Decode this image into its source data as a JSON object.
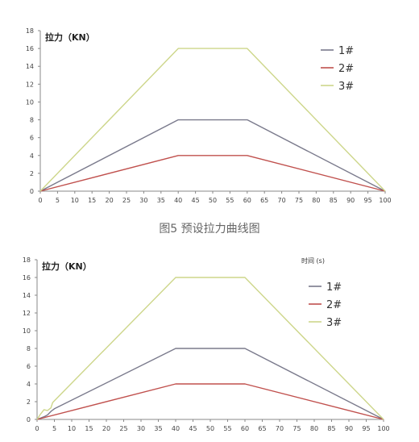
{
  "caption": "图5 预设拉力曲线图",
  "chart_data": [
    {
      "type": "line",
      "ylabel": "拉力（KN）",
      "xlim": [
        0,
        100
      ],
      "ylim": [
        0,
        18
      ],
      "x_ticks": [
        0,
        5,
        10,
        15,
        20,
        25,
        30,
        35,
        40,
        45,
        50,
        55,
        60,
        65,
        70,
        75,
        80,
        85,
        90,
        95,
        100
      ],
      "y_ticks": [
        0,
        2,
        4,
        6,
        8,
        10,
        12,
        14,
        16,
        18
      ],
      "legend_position": "top-right",
      "grid": false,
      "series": [
        {
          "name": "1#",
          "color": "#7a7a8c",
          "x": [
            0,
            40,
            60,
            100
          ],
          "y": [
            0,
            8,
            8,
            0
          ]
        },
        {
          "name": "2#",
          "color": "#c0504d",
          "x": [
            0,
            40,
            60,
            100
          ],
          "y": [
            0,
            4,
            4,
            0
          ]
        },
        {
          "name": "3#",
          "color": "#cdd68a",
          "x": [
            0,
            40,
            60,
            100
          ],
          "y": [
            0,
            16,
            16,
            0
          ]
        }
      ]
    },
    {
      "type": "line",
      "ylabel": "拉力（KN）",
      "xlabel": "时间 (s)",
      "xlim": [
        0,
        100
      ],
      "ylim": [
        0,
        18
      ],
      "x_ticks": [
        0,
        5,
        10,
        15,
        20,
        25,
        30,
        35,
        40,
        45,
        50,
        55,
        60,
        65,
        70,
        75,
        80,
        85,
        90,
        95,
        100
      ],
      "y_ticks": [
        0,
        2,
        4,
        6,
        8,
        10,
        12,
        14,
        16,
        18
      ],
      "legend_position": "top-right",
      "grid": false,
      "series": [
        {
          "name": "1#",
          "color": "#7a7a8c",
          "x": [
            0,
            2,
            3,
            4,
            5,
            40,
            60,
            100
          ],
          "y": [
            0,
            0.3,
            0.5,
            0.9,
            1.2,
            8,
            8,
            0
          ]
        },
        {
          "name": "2#",
          "color": "#c0504d",
          "x": [
            0,
            40,
            60,
            100
          ],
          "y": [
            0,
            4,
            4,
            0
          ]
        },
        {
          "name": "3#",
          "color": "#cdd68a",
          "x": [
            0,
            1,
            2,
            3,
            4,
            4.5,
            5,
            40,
            60,
            100
          ],
          "y": [
            0,
            0.6,
            1.1,
            1.0,
            1.3,
            1.9,
            2.1,
            16,
            16,
            0
          ]
        }
      ]
    }
  ]
}
